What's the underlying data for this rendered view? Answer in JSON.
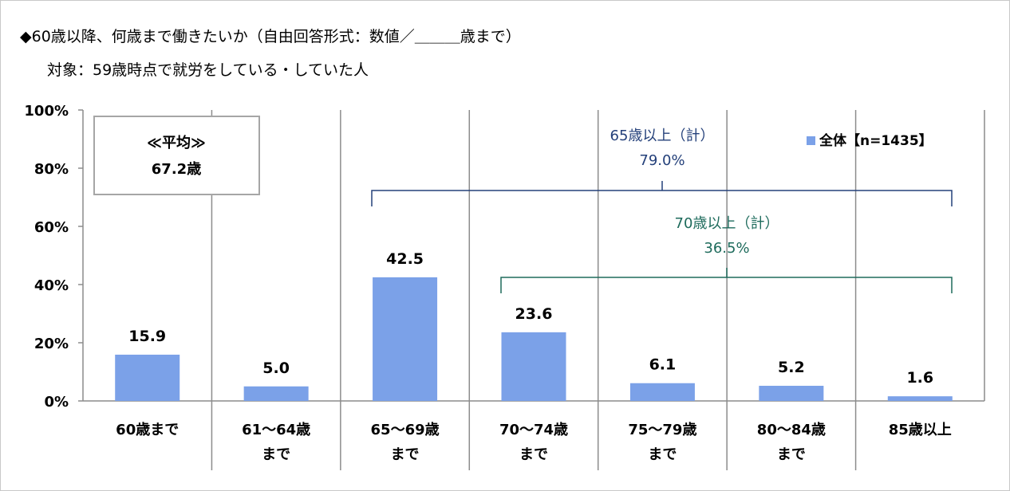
{
  "title": {
    "line1": "◆60歳以降、何歳まで働きたいか（自由回答形式：数値／＿＿＿歳まで）",
    "line2": "対象：59歳時点で就労をしている・していた人"
  },
  "average_box": {
    "label": "≪平均≫",
    "value": "67.2歳"
  },
  "bracket_65": {
    "label": "65歳以上（計）",
    "value": "79.0%"
  },
  "bracket_70": {
    "label": "70歳以上（計）",
    "value": "36.5%"
  },
  "colors": {
    "bar": "#7ba1e8",
    "bracket_65": "#24407a",
    "bracket_70": "#1e6b5c",
    "grid": "#8c8c8c"
  },
  "chart_data": {
    "type": "bar",
    "categories": [
      "60歳まで",
      "61～64歳\nまで",
      "65～69歳\nまで",
      "70～74歳\nまで",
      "75～79歳\nまで",
      "80～84歳\nまで",
      "85歳以上"
    ],
    "series": [
      {
        "name": "全体【n=1435】",
        "values": [
          15.9,
          5.0,
          42.5,
          23.6,
          6.1,
          5.2,
          1.6
        ],
        "labels": [
          "15.9",
          "5.0",
          "42.5",
          "23.6",
          "6.1",
          "5.2",
          "1.6"
        ]
      }
    ],
    "yticks": [
      "0%",
      "20%",
      "40%",
      "60%",
      "80%",
      "100%"
    ],
    "ylim": [
      0,
      100
    ],
    "legend": {
      "position": "top-right"
    },
    "grid": "vertical category separators"
  }
}
